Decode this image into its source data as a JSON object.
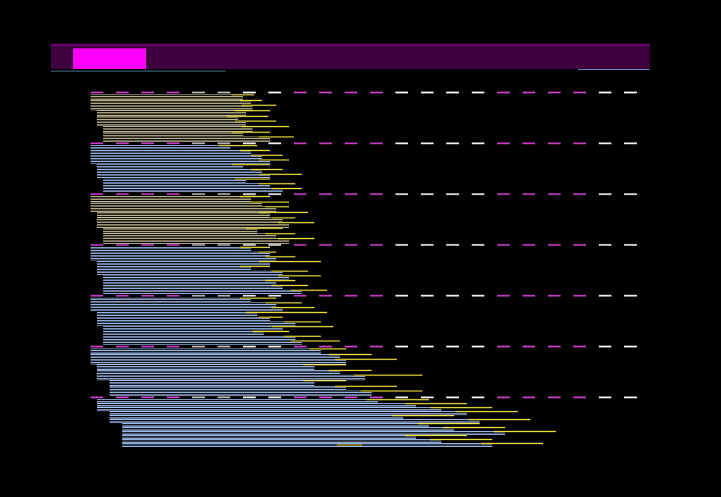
{
  "colors": {
    "background": "#000000",
    "topbar": "#3f0040",
    "topbar_border": "#6a006c",
    "active_tab": "#ff00ff",
    "accent_line": "#5a8fc0",
    "dash_magenta": "#d040d0",
    "dash_white": "#ffffff",
    "dash_gray": "#c0c0c0",
    "stripe_olive": "#b8b088",
    "stripe_blue": "#9ab8e8",
    "stripe_yellow": "#f0e040"
  },
  "topbar": {
    "active_tab_icon": "tab-indicator"
  },
  "groups": [
    {
      "style": "olive",
      "rows": [
        [
          114,
          306,
          320
        ],
        [
          114,
          316,
          330
        ],
        [
          114,
          318,
          348
        ],
        [
          122,
          310,
          340
        ],
        [
          122,
          300,
          338
        ],
        [
          122,
          310,
          348
        ],
        [
          130,
          318,
          364
        ],
        [
          130,
          306,
          340
        ],
        [
          130,
          340,
          370
        ]
      ]
    },
    {
      "style": "blue",
      "rows": [
        [
          114,
          290,
          324
        ],
        [
          114,
          316,
          340
        ],
        [
          114,
          330,
          356
        ],
        [
          114,
          340,
          364
        ],
        [
          122,
          306,
          340
        ],
        [
          122,
          330,
          356
        ],
        [
          122,
          340,
          380
        ],
        [
          130,
          310,
          340
        ],
        [
          130,
          340,
          372
        ],
        [
          130,
          356,
          380
        ]
      ]
    },
    {
      "style": "olive",
      "rows": [
        [
          114,
          316,
          340
        ],
        [
          114,
          330,
          364
        ],
        [
          114,
          348,
          364
        ],
        [
          122,
          340,
          388
        ],
        [
          122,
          356,
          372
        ],
        [
          122,
          364,
          396
        ],
        [
          130,
          324,
          356
        ],
        [
          130,
          348,
          372
        ],
        [
          130,
          364,
          396
        ]
      ]
    },
    {
      "style": "blue",
      "rows": [
        [
          114,
          316,
          340
        ],
        [
          114,
          340,
          348
        ],
        [
          114,
          348,
          372
        ],
        [
          122,
          340,
          404
        ],
        [
          122,
          316,
          340
        ],
        [
          122,
          356,
          388
        ],
        [
          130,
          364,
          404
        ],
        [
          130,
          348,
          372
        ],
        [
          130,
          356,
          388
        ],
        [
          130,
          380,
          412
        ]
      ]
    },
    {
      "style": "blue",
      "rows": [
        [
          114,
          316,
          348
        ],
        [
          114,
          348,
          380
        ],
        [
          114,
          356,
          396
        ],
        [
          122,
          324,
          412
        ],
        [
          122,
          340,
          356
        ],
        [
          122,
          372,
          404
        ],
        [
          130,
          356,
          420
        ],
        [
          130,
          332,
          364
        ],
        [
          130,
          372,
          404
        ],
        [
          130,
          380,
          428
        ]
      ]
    },
    {
      "style": "blue",
      "rows": [
        [
          114,
          404,
          436
        ],
        [
          114,
          428,
          468
        ],
        [
          114,
          436,
          500
        ],
        [
          122,
          396,
          436
        ],
        [
          122,
          428,
          468
        ],
        [
          122,
          460,
          532
        ],
        [
          138,
          396,
          436
        ],
        [
          138,
          436,
          500
        ],
        [
          138,
          468,
          532
        ]
      ]
    },
    {
      "style": "blue",
      "rows": [
        [
          122,
          476,
          540
        ],
        [
          122,
          524,
          588
        ],
        [
          122,
          556,
          620
        ],
        [
          138,
          588,
          652
        ],
        [
          138,
          508,
          572
        ],
        [
          138,
          604,
          668
        ],
        [
          154,
          540,
          604
        ],
        [
          154,
          572,
          636
        ],
        [
          154,
          636,
          700
        ],
        [
          154,
          524,
          588
        ],
        [
          154,
          556,
          620
        ],
        [
          154,
          620,
          684
        ]
      ]
    }
  ],
  "tail": {
    "x_start": 424,
    "x_end": 456
  }
}
